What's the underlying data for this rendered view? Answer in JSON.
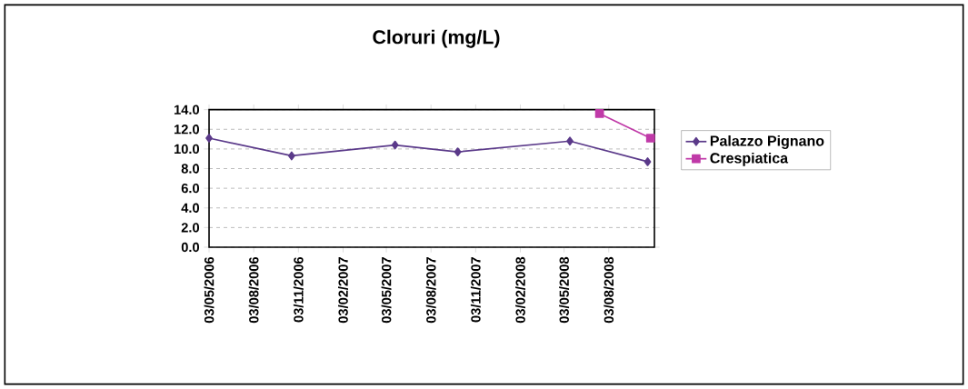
{
  "chart_data": {
    "type": "line",
    "title": "Cloruri (mg/L)",
    "xlim": [
      "2006-05-03",
      "2008-11-05"
    ],
    "xticks": [
      {
        "value": "2006-05-03",
        "label": "03/05/2006"
      },
      {
        "value": "2006-08-03",
        "label": "03/08/2006"
      },
      {
        "value": "2006-11-03",
        "label": "03/11/2006"
      },
      {
        "value": "2007-02-03",
        "label": "03/02/2007"
      },
      {
        "value": "2007-05-03",
        "label": "03/05/2007"
      },
      {
        "value": "2007-08-03",
        "label": "03/08/2007"
      },
      {
        "value": "2007-11-03",
        "label": "03/11/2007"
      },
      {
        "value": "2008-02-03",
        "label": "03/02/2008"
      },
      {
        "value": "2008-05-03",
        "label": "03/05/2008"
      },
      {
        "value": "2008-08-03",
        "label": "03/08/2008"
      }
    ],
    "ylim": [
      0,
      14
    ],
    "yticks": [
      {
        "value": 0,
        "label": "0.0"
      },
      {
        "value": 2,
        "label": "2.0"
      },
      {
        "value": 4,
        "label": "4.0"
      },
      {
        "value": 6,
        "label": "6.0"
      },
      {
        "value": 8,
        "label": "8.0"
      },
      {
        "value": 10,
        "label": "10.0"
      },
      {
        "value": 12,
        "label": "12.0"
      },
      {
        "value": 14,
        "label": "14.0"
      }
    ],
    "grid": "y",
    "legend": "right",
    "series": [
      {
        "name": "Palazzo Pignano",
        "color": "#5b3a8a",
        "marker": "diamond",
        "x": [
          "2006-05-03",
          "2006-10-20",
          "2007-05-21",
          "2007-09-27",
          "2008-05-15",
          "2008-10-22"
        ],
        "values": [
          11.1,
          9.3,
          10.4,
          9.7,
          10.8,
          8.7
        ]
      },
      {
        "name": "Crespiatica",
        "color": "#c03aa8",
        "marker": "square",
        "x": [
          "2008-07-15",
          "2008-10-28"
        ],
        "values": [
          13.6,
          11.1
        ]
      }
    ]
  }
}
